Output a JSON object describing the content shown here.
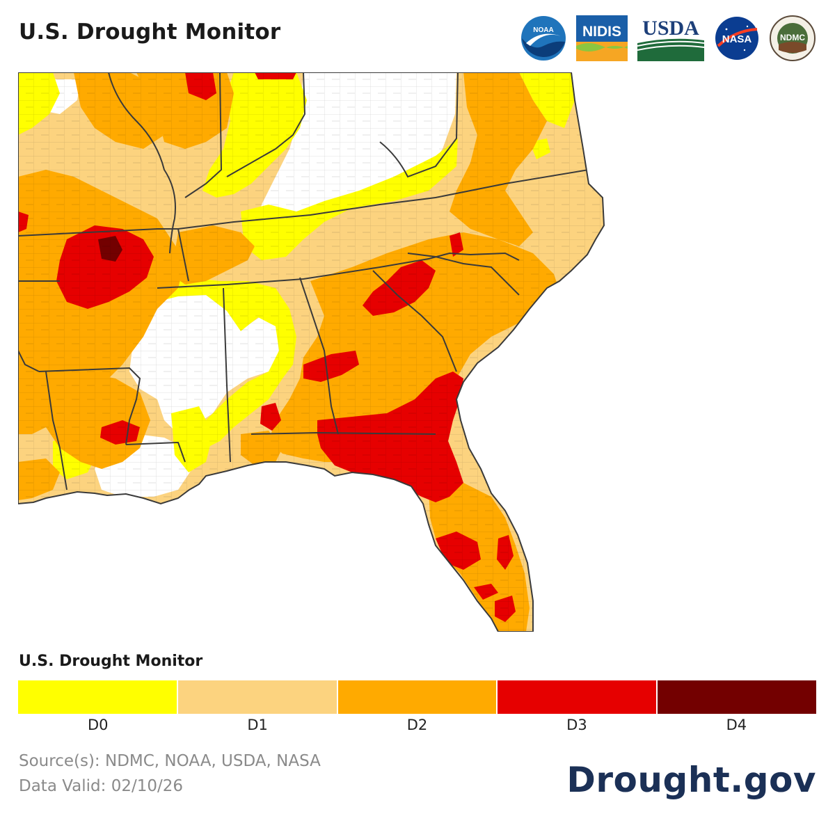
{
  "header": {
    "title": "U.S. Drought Monitor",
    "logos": [
      {
        "icon": "noaa-logo-icon",
        "text": "NOAA"
      },
      {
        "icon": "nidis-logo-icon",
        "text": "NIDIS"
      },
      {
        "icon": "usda-logo-icon",
        "text": "USDA"
      },
      {
        "icon": "nasa-logo-icon",
        "text": "NASA"
      },
      {
        "icon": "ndmc-logo-icon",
        "text": "NDMC"
      }
    ]
  },
  "map": {
    "region": "Southeastern United States",
    "colors": {
      "none": "#ffffff",
      "D0": "#ffff00",
      "D1": "#fcd37f",
      "D2": "#ffaa00",
      "D3": "#e60000",
      "D4": "#730000",
      "boundary": "#3a3a3a",
      "county": "#9a9a9a"
    }
  },
  "legend": {
    "title": "U.S. Drought Monitor",
    "items": [
      {
        "label": "D0",
        "color": "#ffff00"
      },
      {
        "label": "D1",
        "color": "#fcd37f"
      },
      {
        "label": "D2",
        "color": "#ffaa00"
      },
      {
        "label": "D3",
        "color": "#e60000"
      },
      {
        "label": "D4",
        "color": "#730000"
      }
    ]
  },
  "footer": {
    "source": "Source(s): NDMC, NOAA, USDA, NASA",
    "valid": "Data Valid: 02/10/26",
    "brand": "Drought.gov"
  }
}
